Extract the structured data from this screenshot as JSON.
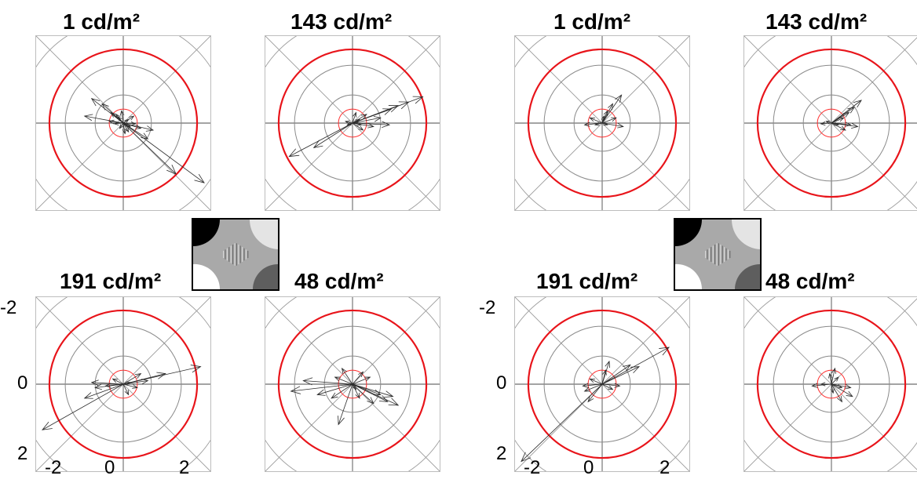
{
  "chart_data": [
    {
      "group": "left",
      "type": "quiver",
      "stimulus_icon": "grating-stimulus-icon",
      "panels": [
        {
          "title": "1 cd/m²",
          "arrows": [
            [
              0,
              0,
              -0.9,
              -0.7
            ],
            [
              0,
              0,
              -0.6,
              -0.55
            ],
            [
              0,
              0,
              -0.35,
              -0.3
            ],
            [
              0,
              0,
              -0.2,
              -0.25
            ],
            [
              0,
              0,
              -0.15,
              -0.18
            ],
            [
              0,
              0,
              -0.4,
              -0.05
            ],
            [
              0,
              0,
              -0.25,
              0.02
            ],
            [
              0,
              0,
              0.15,
              -0.1
            ],
            [
              0,
              0,
              0.3,
              -0.2
            ],
            [
              0,
              0,
              0.35,
              0.02
            ],
            [
              0,
              0,
              0.2,
              0.1
            ],
            [
              0,
              0,
              0.15,
              0.25
            ],
            [
              0,
              0,
              0.05,
              0.3
            ],
            [
              0,
              0,
              -0.1,
              0.15
            ],
            [
              0,
              0,
              -0.05,
              -0.35
            ],
            [
              0,
              0,
              0.5,
              0.15
            ],
            [
              0,
              0,
              0.7,
              0.45
            ],
            [
              0,
              0,
              0.85,
              0.2
            ],
            [
              0,
              0,
              1.5,
              1.45
            ],
            [
              0,
              0,
              2.3,
              1.7
            ],
            [
              0,
              0,
              -1.1,
              -0.2
            ]
          ]
        },
        {
          "title": "143 cd/m²",
          "arrows": [
            [
              0,
              0,
              2.0,
              -0.75
            ],
            [
              0,
              0,
              1.6,
              -0.6
            ],
            [
              0,
              0,
              1.3,
              -0.5
            ],
            [
              0,
              0,
              1.1,
              -0.4
            ],
            [
              0,
              0,
              1.05,
              0.05
            ],
            [
              0,
              0,
              0.8,
              -0.15
            ],
            [
              0,
              0,
              0.6,
              0.1
            ],
            [
              0,
              0,
              0.4,
              -0.25
            ],
            [
              0,
              0,
              0.25,
              0.05
            ],
            [
              0,
              0,
              0.2,
              -0.1
            ],
            [
              0,
              0,
              -0.15,
              0.05
            ],
            [
              0,
              0,
              -0.2,
              -0.05
            ],
            [
              0,
              0,
              0.3,
              0.2
            ],
            [
              0,
              0,
              0.1,
              -0.3
            ],
            [
              0,
              0,
              -1.8,
              0.95
            ],
            [
              0,
              0,
              -1.1,
              0.7
            ]
          ]
        },
        {
          "title": "191 cd/m²",
          "arrows": [
            [
              0,
              0,
              2.2,
              -0.5
            ],
            [
              0,
              0,
              1.2,
              -0.3
            ],
            [
              0,
              0,
              0.7,
              -0.1
            ],
            [
              0,
              0,
              0.4,
              0.1
            ],
            [
              0,
              0,
              0.2,
              -0.05
            ],
            [
              0,
              0,
              -0.5,
              0.05
            ],
            [
              0,
              0,
              -0.8,
              0.1
            ],
            [
              0,
              0,
              -0.9,
              -0.05
            ],
            [
              0,
              0,
              -1.1,
              0.4
            ],
            [
              0,
              0,
              -2.3,
              1.3
            ],
            [
              0,
              0,
              0.15,
              0.3
            ],
            [
              0,
              0,
              -0.3,
              -0.15
            ],
            [
              0,
              0,
              0.5,
              -0.3
            ]
          ]
        },
        {
          "title": "48 cd/m²",
          "arrows": [
            [
              0,
              0,
              -1.75,
              0.2
            ],
            [
              0,
              0,
              -1.4,
              -0.1
            ],
            [
              0,
              0,
              -1.0,
              0.3
            ],
            [
              0,
              0,
              -0.5,
              -0.2
            ],
            [
              0,
              0,
              -0.3,
              -0.45
            ],
            [
              0,
              0,
              0.3,
              -0.35
            ],
            [
              0,
              0,
              0.5,
              -0.2
            ],
            [
              0,
              0,
              0.8,
              0.3
            ],
            [
              0,
              0,
              1.0,
              0.5
            ],
            [
              0,
              0,
              1.15,
              0.35
            ],
            [
              0,
              0,
              1.3,
              0.6
            ],
            [
              0,
              0,
              0.6,
              0.55
            ],
            [
              0,
              0,
              0.2,
              0.4
            ],
            [
              0,
              0,
              -0.4,
              1.15
            ],
            [
              0,
              0,
              -0.6,
              0.4
            ],
            [
              0,
              0,
              0.1,
              0.15
            ]
          ]
        }
      ],
      "y_ticks": [
        "-2",
        "0",
        "2"
      ],
      "x_ticks": [
        "-2",
        "0",
        "2"
      ]
    },
    {
      "group": "right",
      "type": "quiver",
      "stimulus_icon": "grating-stimulus-icon",
      "panels": [
        {
          "title": "1 cd/m²",
          "arrows": [
            [
              0,
              0,
              0.55,
              -0.8
            ],
            [
              0,
              0,
              0.3,
              -0.55
            ],
            [
              0,
              0,
              0.15,
              -0.35
            ],
            [
              0,
              0,
              0.4,
              -0.15
            ],
            [
              0,
              0,
              0.6,
              0.1
            ],
            [
              0,
              0,
              -0.35,
              -0.15
            ],
            [
              0,
              0,
              -0.5,
              0.05
            ],
            [
              0,
              0,
              -0.2,
              0.05
            ],
            [
              0,
              0,
              0.05,
              -0.2
            ],
            [
              0,
              0,
              0.15,
              0.05
            ]
          ]
        },
        {
          "title": "143 cd/m²",
          "arrows": [
            [
              0,
              0,
              0.85,
              -0.65
            ],
            [
              0,
              0,
              0.65,
              -0.45
            ],
            [
              0,
              0,
              0.5,
              -0.3
            ],
            [
              0,
              0,
              0.35,
              -0.15
            ],
            [
              0,
              0,
              0.55,
              0.05
            ],
            [
              0,
              0,
              0.75,
              0.1
            ],
            [
              0,
              0,
              0.4,
              0.2
            ],
            [
              0,
              0,
              -0.3,
              0.02
            ],
            [
              0,
              0,
              -0.15,
              -0.05
            ],
            [
              0,
              0,
              0.2,
              0.05
            ]
          ]
        },
        {
          "title": "191 cd/m²",
          "arrows": [
            [
              0,
              0,
              1.9,
              -1.05
            ],
            [
              0,
              0,
              1.05,
              -0.5
            ],
            [
              0,
              0,
              0.8,
              -0.55
            ],
            [
              0,
              0,
              0.2,
              -0.65
            ],
            [
              0,
              0,
              0.1,
              -0.4
            ],
            [
              0,
              0,
              -0.55,
              0.05
            ],
            [
              0,
              0,
              -0.35,
              -0.15
            ],
            [
              0,
              0,
              -0.5,
              0.2
            ],
            [
              0,
              0,
              -0.4,
              0.5
            ],
            [
              0,
              0,
              -2.3,
              2.2
            ],
            [
              0,
              0,
              0.3,
              0.15
            ],
            [
              0,
              0,
              0.5,
              0.05
            ]
          ]
        },
        {
          "title": "48 cd/m²",
          "arrows": [
            [
              0,
              0,
              0.1,
              -0.45
            ],
            [
              0,
              0,
              -0.05,
              -0.3
            ],
            [
              0,
              0,
              0.3,
              0.1
            ],
            [
              0,
              0,
              0.55,
              0.1
            ],
            [
              0,
              0,
              -0.55,
              0.05
            ],
            [
              0,
              0,
              -0.3,
              0.0
            ],
            [
              0,
              0,
              0.3,
              0.5
            ],
            [
              0,
              0,
              0.6,
              0.35
            ],
            [
              0,
              0,
              0.05,
              0.25
            ],
            [
              0,
              0,
              0.2,
              -0.2
            ]
          ]
        }
      ],
      "y_ticks": [
        "-2",
        "0",
        "2"
      ],
      "x_ticks": [
        "-2",
        "0",
        "2"
      ]
    }
  ]
}
